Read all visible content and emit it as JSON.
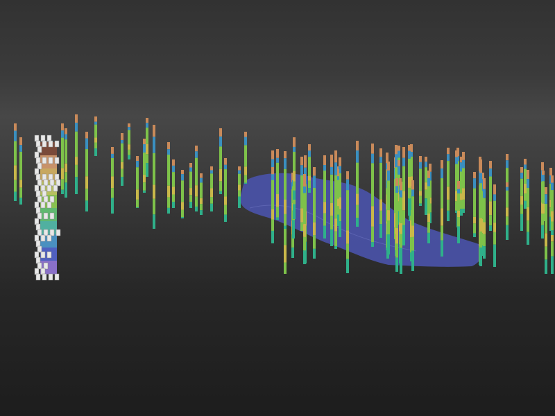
{
  "scene": {
    "background_top": "#3b3b3b",
    "background_bottom": "#1d1d1d",
    "surface_color": "#4a52a8",
    "borehole_colors": [
      "#c98a5a",
      "#7ec24a",
      "#3a8fc0",
      "#c9b84a",
      "#2fb08a"
    ],
    "legend_colors": [
      "#7a4a3a",
      "#c8926a",
      "#c8a860",
      "#b8c060",
      "#88c050",
      "#60b870",
      "#50b0a0",
      "#4a90c0",
      "#5060c0",
      "#8a70c8"
    ]
  }
}
